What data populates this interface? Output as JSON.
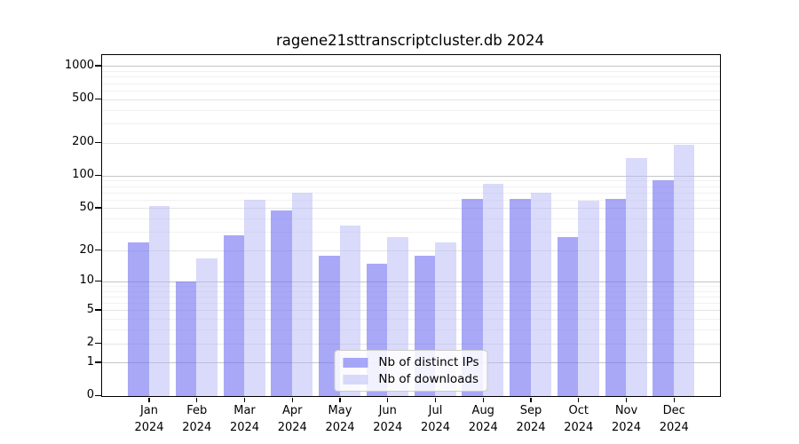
{
  "chart_data": {
    "type": "bar",
    "title": "ragene21sttranscriptcluster.db 2024",
    "categories": [
      "Jan",
      "Feb",
      "Mar",
      "Apr",
      "May",
      "Jun",
      "Jul",
      "Aug",
      "Sep",
      "Oct",
      "Nov",
      "Dec"
    ],
    "category_year": "2024",
    "series": [
      {
        "name": "Nb of distinct IPs",
        "color": "#7373f2",
        "alpha": 0.62,
        "values": [
          24,
          10,
          28,
          48,
          18,
          15,
          18,
          61,
          61,
          27,
          61,
          91
        ]
      },
      {
        "name": "Nb of downloads",
        "color": "#b5b5f5",
        "alpha": 0.5,
        "values": [
          53,
          17,
          60,
          70,
          35,
          27,
          24,
          84,
          70,
          59,
          145,
          195
        ]
      }
    ],
    "y_scale": "log1p",
    "ylim": [
      0,
      1255
    ],
    "y_ticks_labeled": [
      0,
      1,
      2,
      5,
      10,
      20,
      50,
      100,
      200,
      500,
      1000
    ],
    "y_ticks_minor": [
      3,
      4,
      6,
      7,
      8,
      9,
      30,
      40,
      60,
      70,
      80,
      90,
      300,
      400,
      600,
      700,
      800,
      900
    ],
    "grid": true,
    "legend_position": "lower center",
    "xlabel": "",
    "ylabel": ""
  },
  "colors": {
    "background": "#ffffff",
    "axis": "#000000",
    "grid_major10": "#c6c6c6",
    "grid_labeled": "#e4e4e4",
    "grid_minor": "#f1f1f1",
    "bar_ips_rendered": "#a8a8f7",
    "bar_downloads_rendered": "#d8d8fa"
  }
}
